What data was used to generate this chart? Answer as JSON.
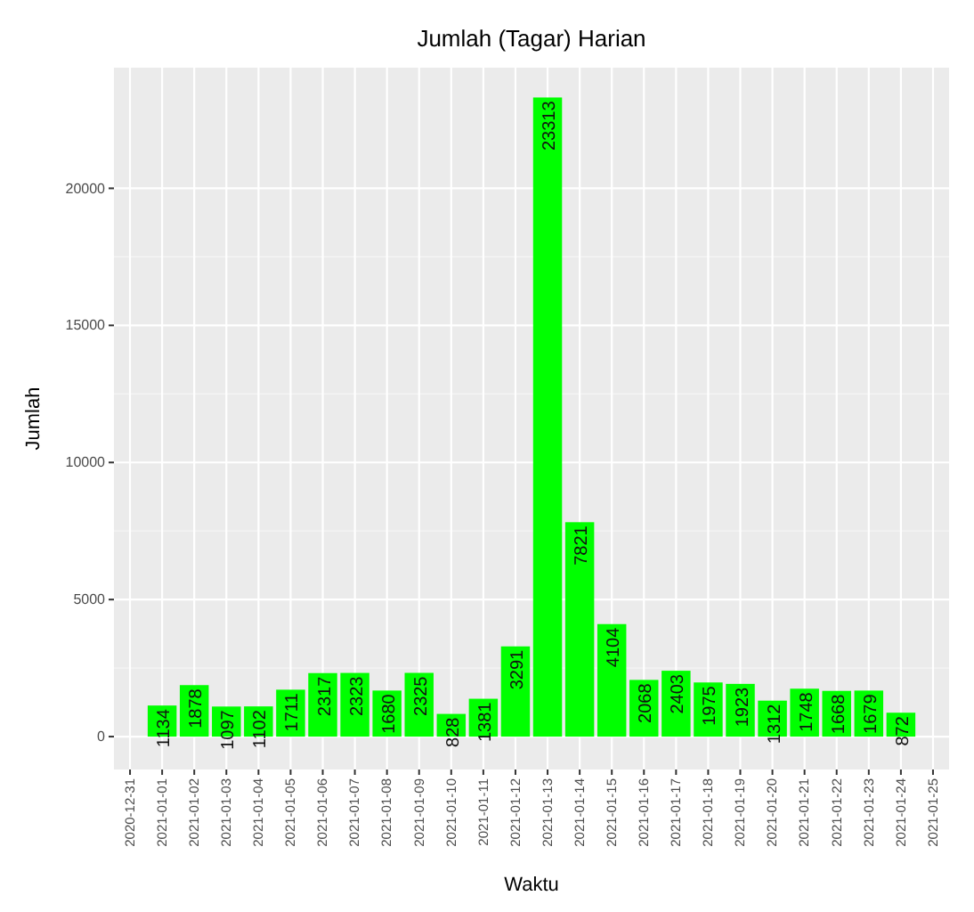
{
  "chart_data": {
    "type": "bar",
    "title": "Jumlah (Tagar) Harian",
    "xlabel": "Waktu",
    "ylabel": "Jumlah",
    "x": [
      "2021-01-01",
      "2021-01-02",
      "2021-01-03",
      "2021-01-04",
      "2021-01-05",
      "2021-01-06",
      "2021-01-07",
      "2021-01-08",
      "2021-01-09",
      "2021-01-10",
      "2021-01-11",
      "2021-01-12",
      "2021-01-13",
      "2021-01-14",
      "2021-01-15",
      "2021-01-16",
      "2021-01-17",
      "2021-01-18",
      "2021-01-19",
      "2021-01-20",
      "2021-01-21",
      "2021-01-22",
      "2021-01-23",
      "2021-01-24"
    ],
    "values": [
      1134,
      1878,
      1097,
      1102,
      1711,
      2317,
      2323,
      1680,
      2325,
      828,
      1381,
      3291,
      23313,
      7821,
      4104,
      2068,
      2403,
      1975,
      1923,
      1312,
      1748,
      1668,
      1679,
      872
    ],
    "color": "#00ff00",
    "data_labels": true,
    "grid": true,
    "xlim": [
      "2020-12-30T12:00",
      "2021-01-25T12:00"
    ],
    "xticks": [
      "2020-12-31",
      "2021-01-01",
      "2021-01-02",
      "2021-01-03",
      "2021-01-04",
      "2021-01-05",
      "2021-01-06",
      "2021-01-07",
      "2021-01-08",
      "2021-01-09",
      "2021-01-10",
      "2021-01-11",
      "2021-01-12",
      "2021-01-13",
      "2021-01-14",
      "2021-01-15",
      "2021-01-16",
      "2021-01-17",
      "2021-01-18",
      "2021-01-19",
      "2021-01-20",
      "2021-01-21",
      "2021-01-22",
      "2021-01-23",
      "2021-01-24",
      "2021-01-25"
    ],
    "ylim": [
      -1200,
      24400
    ],
    "yticks": [
      0,
      5000,
      10000,
      15000,
      20000
    ]
  }
}
